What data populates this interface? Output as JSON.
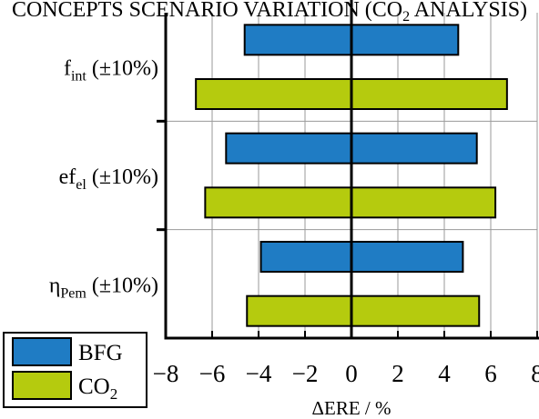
{
  "chart_data": {
    "type": "bar",
    "orientation": "horizontal",
    "title": "CONCEPTS SCENARIO VARIATION (CO",
    "title_sub": "2",
    "title_suffix": " ANALYSIS)",
    "xlabel": "ΔERE / %",
    "xlim": [
      -8,
      8
    ],
    "xticks": [
      -8,
      -6,
      -4,
      -2,
      0,
      2,
      4,
      6,
      8
    ],
    "xtick_labels": [
      "−8",
      "−6",
      "−4",
      "−2",
      "0",
      "2",
      "4",
      "6",
      "8"
    ],
    "grid": true,
    "legend_position": "bottom-left",
    "categories": [
      {
        "main": "f",
        "sub": "int",
        "suffix": " (±10%)"
      },
      {
        "main": "ef",
        "sub": "el",
        "suffix": " (±10%)"
      },
      {
        "main": "η",
        "sub": "Pem",
        "suffix": " (±10%)"
      }
    ],
    "series": [
      {
        "name": "BFG",
        "name_sub": "",
        "color": "#1f7cc4",
        "low": [
          -4.6,
          -5.4,
          -3.9
        ],
        "high": [
          4.6,
          5.4,
          4.8
        ]
      },
      {
        "name": "CO",
        "name_sub": "2",
        "color": "#b5cb0e",
        "low": [
          -6.7,
          -6.3,
          -4.5
        ],
        "high": [
          6.7,
          6.2,
          5.5
        ]
      }
    ]
  }
}
